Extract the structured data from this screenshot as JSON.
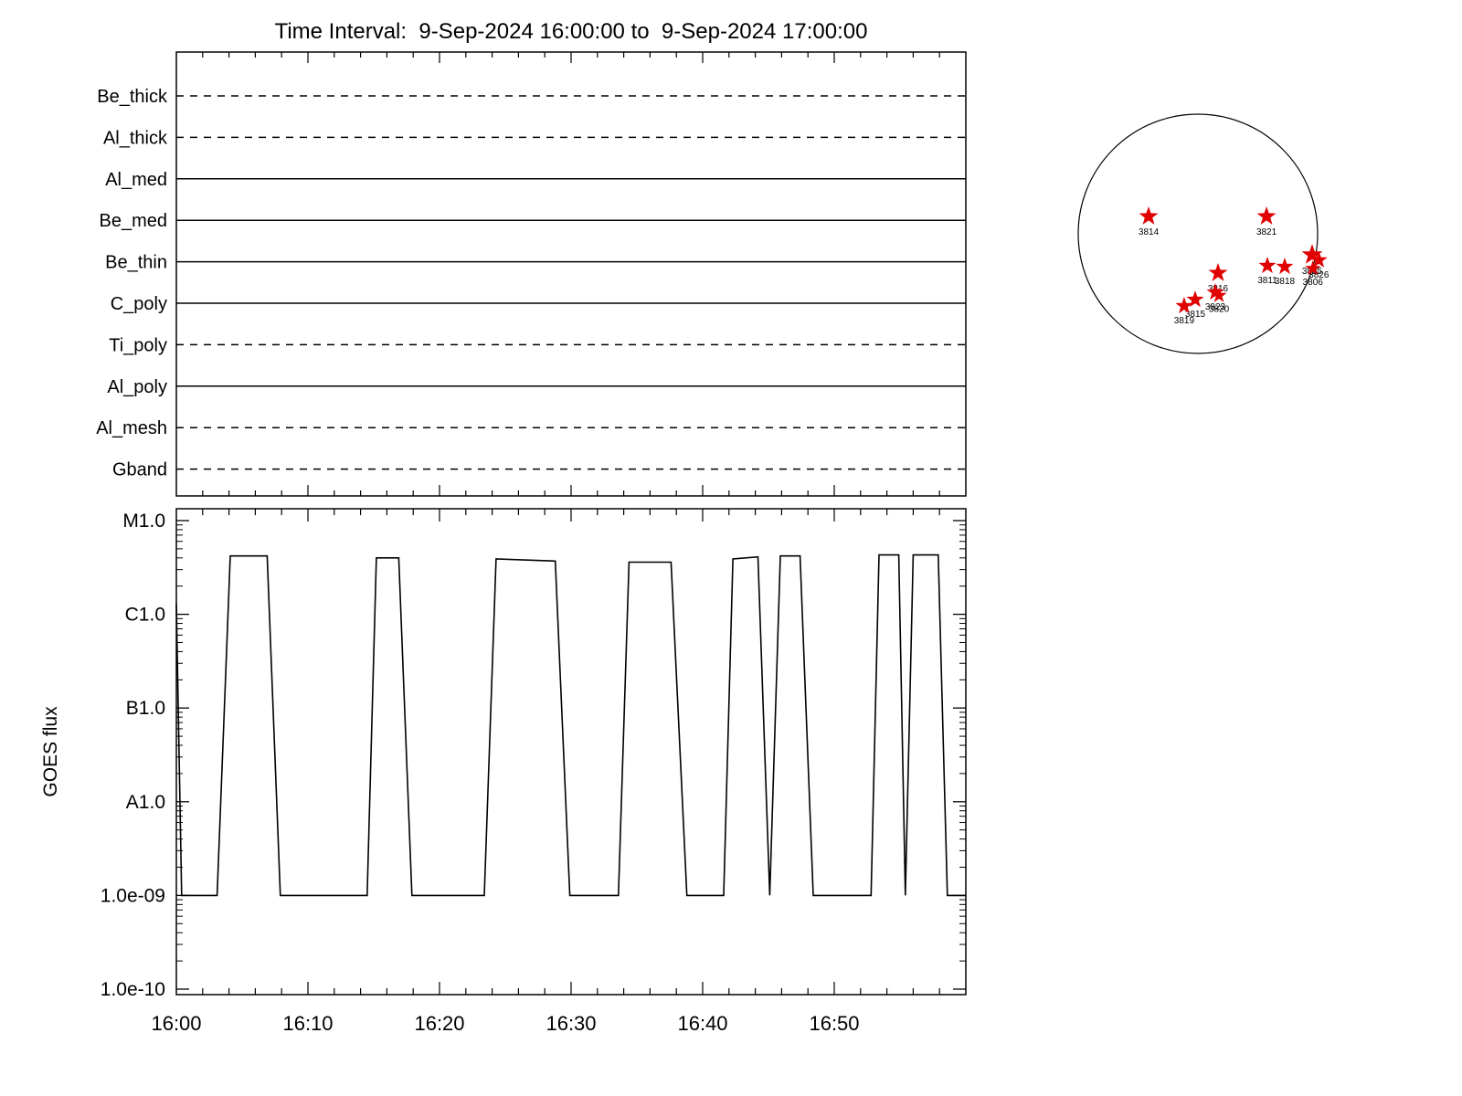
{
  "title": "Time Interval:  9-Sep-2024 16:00:00 to  9-Sep-2024 17:00:00",
  "colors": {
    "line": "#000000",
    "star": "#e00000",
    "background": "#ffffff"
  },
  "chart_data": [
    {
      "type": "line",
      "name": "xrt_filter_timeline",
      "title": "Time Interval:  9-Sep-2024 16:00:00 to  9-Sep-2024 17:00:00",
      "x_range_minutes": [
        0,
        60
      ],
      "grid": false,
      "rows": [
        {
          "label": "Be_thick",
          "line_style": "dashed"
        },
        {
          "label": "Al_thick",
          "line_style": "dashed"
        },
        {
          "label": "Al_med",
          "line_style": "solid"
        },
        {
          "label": "Be_med",
          "line_style": "solid"
        },
        {
          "label": "Be_thin",
          "line_style": "solid"
        },
        {
          "label": "C_poly",
          "line_style": "solid"
        },
        {
          "label": "Ti_poly",
          "line_style": "dashed"
        },
        {
          "label": "Al_poly",
          "line_style": "solid"
        },
        {
          "label": "Al_mesh",
          "line_style": "dashed"
        },
        {
          "label": "Gband",
          "line_style": "dashed"
        }
      ]
    },
    {
      "type": "line",
      "name": "goes_flux",
      "ylabel": "GOES flux",
      "y_scale": "log",
      "ylim": [
        8.7e-11,
        1.34e-05
      ],
      "grid": false,
      "x_tick_minutes": [
        0,
        10,
        20,
        30,
        40,
        50
      ],
      "x_tick_labels": [
        "16:00",
        "16:10",
        "16:20",
        "16:30",
        "16:40",
        "16:50"
      ],
      "x_minor_step_minutes": 2,
      "y_ticks": [
        {
          "value": 1e-10,
          "label": "1.0e-10"
        },
        {
          "value": 1e-09,
          "label": "1.0e-09"
        },
        {
          "value": 1e-08,
          "label": "A1.0"
        },
        {
          "value": 1e-07,
          "label": "B1.0"
        },
        {
          "value": 1e-06,
          "label": "C1.0"
        },
        {
          "value": 1e-05,
          "label": "M1.0"
        }
      ],
      "series": [
        {
          "name": "goes_long_channel",
          "points_minutes_flux": [
            [
              0,
              1.3e-06
            ],
            [
              0.4,
              1e-09
            ],
            [
              3.1,
              1e-09
            ],
            [
              4.1,
              4.2e-06
            ],
            [
              6.9,
              4.2e-06
            ],
            [
              7.9,
              1e-09
            ],
            [
              14.5,
              1e-09
            ],
            [
              15.2,
              4e-06
            ],
            [
              16.9,
              4e-06
            ],
            [
              17.9,
              1e-09
            ],
            [
              23.4,
              1e-09
            ],
            [
              24.3,
              3.9e-06
            ],
            [
              28.8,
              3.7e-06
            ],
            [
              29.9,
              1e-09
            ],
            [
              33.6,
              1e-09
            ],
            [
              34.4,
              3.6e-06
            ],
            [
              37.6,
              3.6e-06
            ],
            [
              38.8,
              1e-09
            ],
            [
              41.6,
              1e-09
            ],
            [
              42.3,
              3.9e-06
            ],
            [
              44.2,
              4.1e-06
            ],
            [
              45.1,
              1e-09
            ],
            [
              45.9,
              4.2e-06
            ],
            [
              47.4,
              4.2e-06
            ],
            [
              48.4,
              1e-09
            ],
            [
              52.8,
              1e-09
            ],
            [
              53.4,
              4.3e-06
            ],
            [
              54.9,
              4.3e-06
            ],
            [
              55.4,
              1e-09
            ],
            [
              56.0,
              4.3e-06
            ],
            [
              57.9,
              4.3e-06
            ],
            [
              58.6,
              1e-09
            ],
            [
              60,
              1e-09
            ]
          ]
        }
      ]
    },
    {
      "type": "scatter",
      "name": "solar_disk_active_regions",
      "marker": "star",
      "marker_color": "#e00000",
      "regions": [
        {
          "label": "3814",
          "dx": -0.412,
          "dy": -0.145,
          "size": 11
        },
        {
          "label": "3821",
          "dx": 0.573,
          "dy": -0.145,
          "size": 11
        },
        {
          "label": "3816",
          "dx": 0.168,
          "dy": 0.328,
          "size": 11
        },
        {
          "label": "3811",
          "dx": 0.58,
          "dy": 0.267,
          "size": 10
        },
        {
          "label": "3818",
          "dx": 0.725,
          "dy": 0.275,
          "size": 10
        },
        {
          "label": "3825",
          "dx": 0.954,
          "dy": 0.176,
          "size": 12
        },
        {
          "label": "3826",
          "dx": 1.01,
          "dy": 0.22,
          "size": 10
        },
        {
          "label": "3806",
          "dx": 0.96,
          "dy": 0.29,
          "size": 9
        },
        {
          "label": "3823",
          "dx": 0.145,
          "dy": 0.489,
          "size": 10
        },
        {
          "label": "3820",
          "dx": 0.176,
          "dy": 0.515,
          "size": 9
        },
        {
          "label": "3815",
          "dx": -0.023,
          "dy": 0.55,
          "size": 10
        },
        {
          "label": "3819",
          "dx": -0.115,
          "dy": 0.603,
          "size": 10
        }
      ]
    }
  ]
}
